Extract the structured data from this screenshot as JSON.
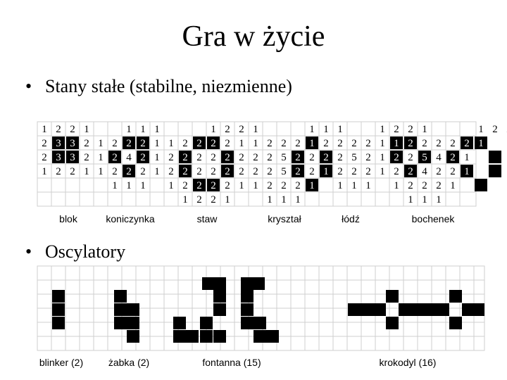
{
  "title": "Gra w życie",
  "section1": {
    "heading": "Stany stałe (stabilne, niezmienne)",
    "rows": [
      [
        "1",
        "2",
        "2",
        "1",
        "",
        "",
        "1",
        "1",
        "1",
        "",
        "",
        "",
        "1",
        "2",
        "2",
        "1",
        "",
        "",
        "",
        "1",
        "1",
        "1",
        "",
        "",
        "1",
        "2",
        "2",
        "1",
        "",
        "",
        "",
        "1",
        "2",
        "2",
        "1",
        ""
      ],
      [
        "2",
        "3",
        "3",
        "2",
        "1",
        "2",
        "2",
        "2",
        "1",
        "1",
        "2",
        "2",
        "2",
        "2",
        "1",
        "1",
        "2",
        "2",
        "2",
        "1",
        "2",
        "2",
        "2",
        "2",
        "1",
        "1",
        "2",
        "2",
        "2",
        "2",
        "2",
        "1"
      ],
      [
        "2",
        "3",
        "3",
        "2",
        "1",
        "2",
        "4",
        "2",
        "1",
        "2",
        "2",
        "2",
        "2",
        "2",
        "2",
        "2",
        "2",
        "5",
        "2",
        "2",
        "2",
        "2",
        "5",
        "2",
        "1",
        "2",
        "2",
        "5",
        "4",
        "2",
        "1"
      ],
      [
        "1",
        "2",
        "2",
        "1",
        "1",
        "2",
        "2",
        "2",
        "1",
        "2",
        "2",
        "2",
        "2",
        "2",
        "2",
        "2",
        "2",
        "5",
        "2",
        "2",
        "1",
        "2",
        "2",
        "2",
        "1",
        "2",
        "2",
        "4",
        "2",
        "2",
        "1"
      ],
      [
        "",
        "",
        "",
        "",
        "",
        "1",
        "1",
        "1",
        "",
        "1",
        "2",
        "2",
        "2",
        "2",
        "1",
        "1",
        "2",
        "2",
        "2",
        "1",
        "",
        "1",
        "1",
        "1",
        "",
        "1",
        "2",
        "2",
        "2",
        "1",
        ""
      ],
      [
        "",
        "",
        "",
        "",
        "",
        "",
        "",
        "",
        "",
        "",
        "1",
        "2",
        "2",
        "1",
        "",
        "",
        "1",
        "1",
        "1",
        "",
        "",
        "",
        "",
        "",
        "",
        "",
        "1",
        "1",
        "1",
        "",
        ""
      ]
    ],
    "labels": [
      "blok",
      "koniczynka",
      "staw",
      "kryształ",
      "łódź",
      "bochenek"
    ]
  },
  "section2": {
    "heading": "Oscylatory",
    "labels": [
      "blinker (2)",
      "żabka (2)",
      "fontanna (15)",
      "krokodyl (16)"
    ]
  },
  "colors": {
    "cell_alive": "#000000",
    "alive_text": "#ffffff",
    "grid_line": "#cfcfcf"
  }
}
